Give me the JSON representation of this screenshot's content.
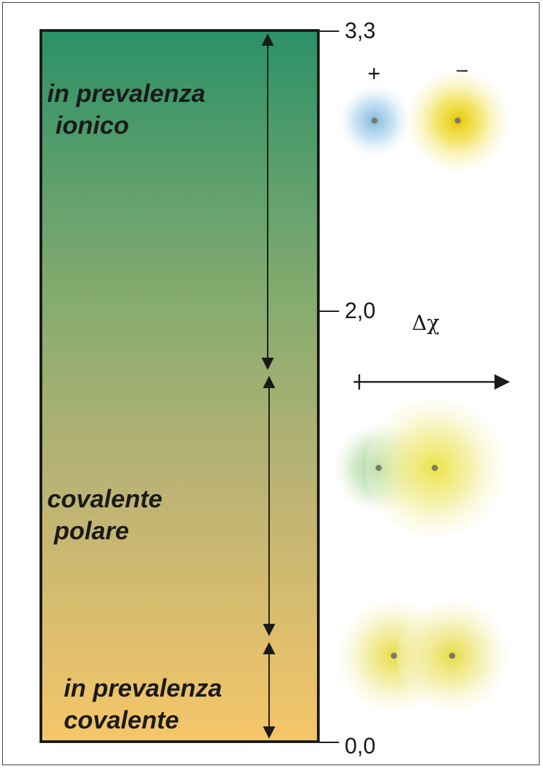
{
  "scale": {
    "ticks": [
      {
        "value": "3,3"
      },
      {
        "value": "2,0"
      },
      {
        "value": "0,0"
      }
    ],
    "axis_symbol": "Δχ"
  },
  "regions": [
    {
      "lines": [
        "in prevalenza",
        "ionico"
      ]
    },
    {
      "lines": [
        "covalente",
        "polare"
      ]
    },
    {
      "lines": [
        "in prevalenza",
        "covalente"
      ]
    }
  ],
  "ions": {
    "positive_sign": "+",
    "negative_sign": "−"
  },
  "colors": {
    "gradient_top": "#2c9168",
    "gradient_bottom": "#f5c668",
    "cation": "#a9d3ea",
    "anion": "#f0e24a",
    "polar_partner": "#a8d8a0",
    "nucleus": "#7a7a6a"
  }
}
